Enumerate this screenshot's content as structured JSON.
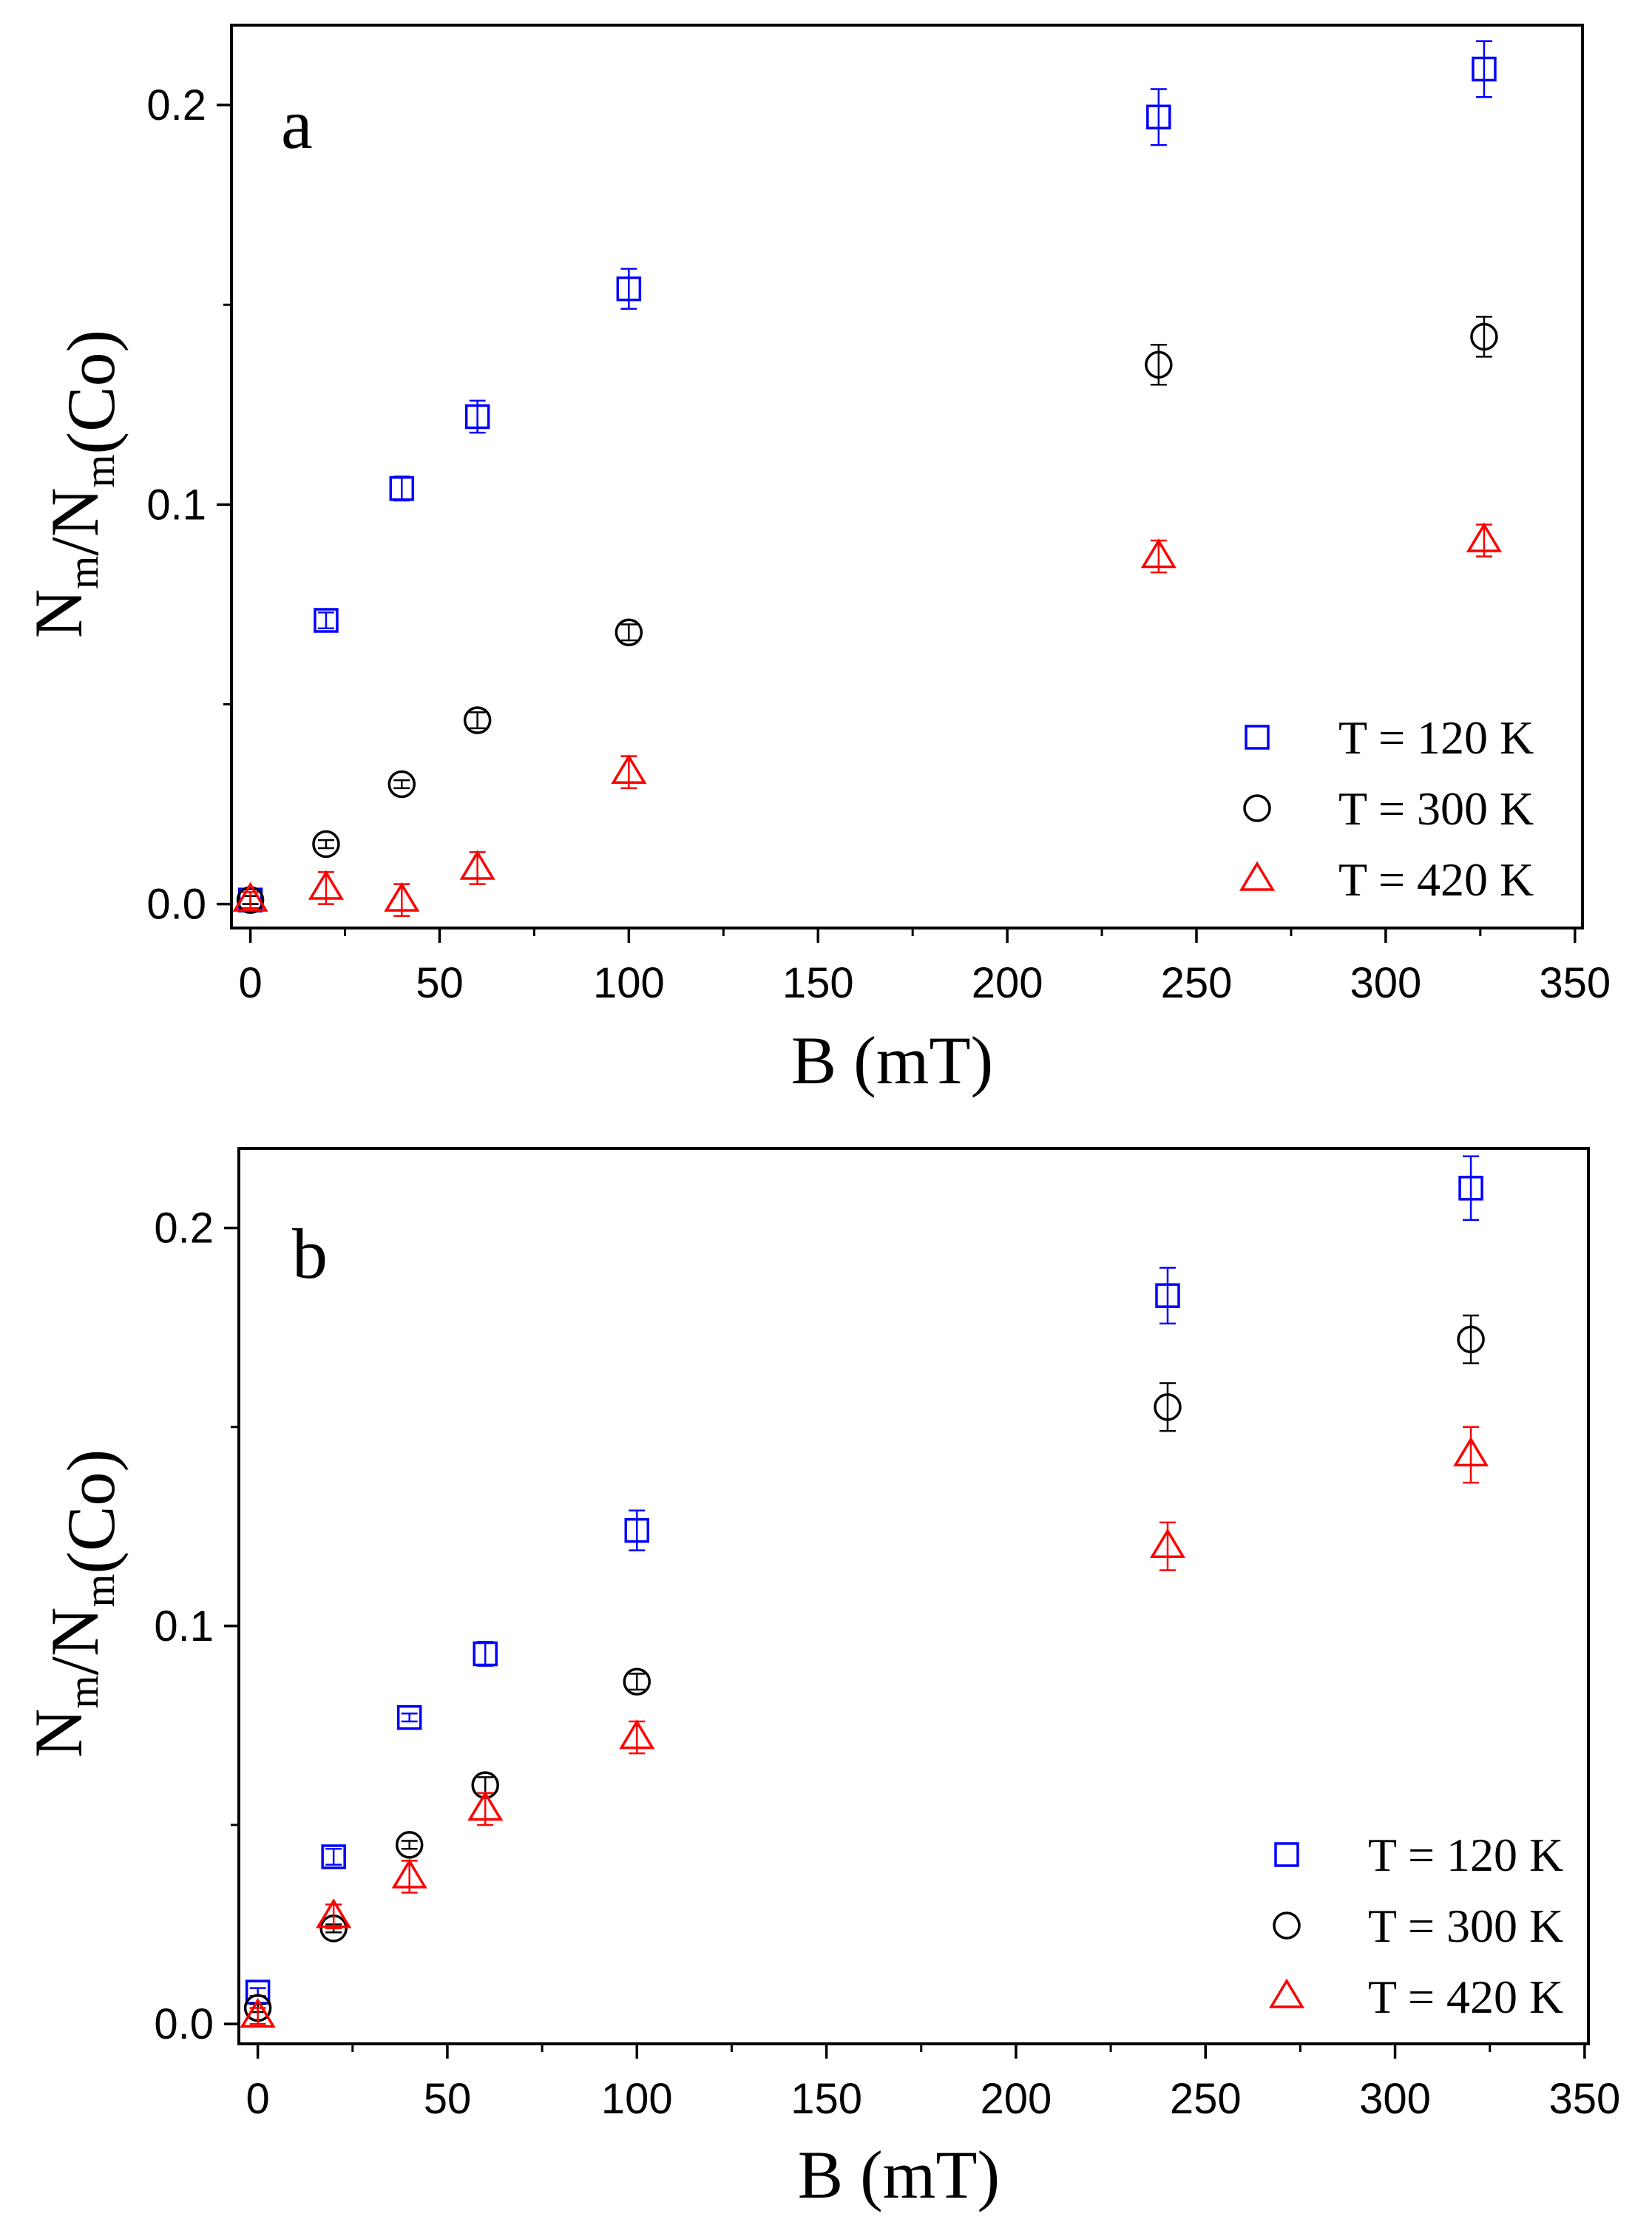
{
  "figure": {
    "colors": {
      "blue": "#0000ff",
      "black": "#000000",
      "red": "#ff0000"
    },
    "markers": {
      "T120": "square-marker",
      "T300": "circle-marker",
      "T420": "triangle-marker"
    }
  },
  "chart_data": [
    {
      "type": "scatter",
      "panel_label": "a",
      "xlabel": "B (mT)",
      "ylabel": {
        "N": "N",
        "sub": "m",
        "slash": "/",
        "N2": "N",
        "sub2": "m",
        "suffix": "(Co)"
      },
      "xlim": [
        -5,
        352
      ],
      "ylim": [
        -0.006,
        0.22
      ],
      "xticks": [
        0,
        50,
        100,
        150,
        200,
        250,
        300,
        350
      ],
      "xtick_labels": [
        "0",
        "50",
        "100",
        "150",
        "200",
        "250",
        "300",
        "350"
      ],
      "yticks": [
        0.0,
        0.1,
        0.2
      ],
      "ytick_labels": [
        "0.0",
        "0.1",
        "0.2"
      ],
      "legend_position": "lower-right",
      "series": [
        {
          "name": "T = 120 K",
          "marker": "square",
          "color": "#0000ff",
          "x": [
            0,
            20,
            40,
            60,
            100,
            240,
            326
          ],
          "y": [
            0.001,
            0.071,
            0.104,
            0.122,
            0.154,
            0.197,
            0.209
          ],
          "err": [
            0.001,
            0.002,
            0.003,
            0.004,
            0.005,
            0.007,
            0.007
          ]
        },
        {
          "name": "T = 300 K",
          "marker": "circle",
          "color": "#000000",
          "x": [
            0,
            20,
            40,
            60,
            100,
            240,
            326
          ],
          "y": [
            0.001,
            0.015,
            0.03,
            0.046,
            0.068,
            0.135,
            0.142
          ],
          "err": [
            0.001,
            0.001,
            0.001,
            0.002,
            0.002,
            0.005,
            0.005
          ]
        },
        {
          "name": "T = 420 K",
          "marker": "triangle",
          "color": "#ff0000",
          "x": [
            0,
            20,
            40,
            60,
            100,
            240,
            326
          ],
          "y": [
            0.001,
            0.004,
            0.001,
            0.009,
            0.033,
            0.087,
            0.091
          ],
          "err": [
            0.002,
            0.004,
            0.004,
            0.004,
            0.004,
            0.004,
            0.004
          ]
        }
      ]
    },
    {
      "type": "scatter",
      "panel_label": "b",
      "xlabel": "B (mT)",
      "ylabel": {
        "N": "N",
        "sub": "m",
        "slash": "/",
        "N2": "N",
        "sub2": "m",
        "suffix": "(Co)"
      },
      "xlim": [
        -5,
        351
      ],
      "ylim": [
        -0.005,
        0.22
      ],
      "xticks": [
        0,
        50,
        100,
        150,
        200,
        250,
        300,
        350
      ],
      "xtick_labels": [
        "0",
        "50",
        "100",
        "150",
        "200",
        "250",
        "300",
        "350"
      ],
      "yticks": [
        0.0,
        0.1,
        0.2
      ],
      "ytick_labels": [
        "0.0",
        "0.1",
        "0.2"
      ],
      "legend_position": "lower-right",
      "series": [
        {
          "name": "T = 120 K",
          "marker": "square",
          "color": "#0000ff",
          "x": [
            0,
            20,
            40,
            60,
            100,
            240,
            320
          ],
          "y": [
            0.008,
            0.042,
            0.077,
            0.093,
            0.124,
            0.183,
            0.21
          ],
          "err": [
            0.001,
            0.002,
            0.001,
            0.003,
            0.005,
            0.007,
            0.008
          ]
        },
        {
          "name": "T = 300 K",
          "marker": "circle",
          "color": "#000000",
          "x": [
            0,
            20,
            40,
            60,
            100,
            240,
            320
          ],
          "y": [
            0.004,
            0.024,
            0.045,
            0.06,
            0.086,
            0.155,
            0.172
          ],
          "err": [
            0.001,
            0.001,
            0.001,
            0.002,
            0.002,
            0.006,
            0.006
          ]
        },
        {
          "name": "T = 420 K",
          "marker": "triangle",
          "color": "#ff0000",
          "x": [
            0,
            20,
            40,
            60,
            100,
            240,
            320
          ],
          "y": [
            0.002,
            0.027,
            0.037,
            0.054,
            0.072,
            0.12,
            0.143
          ],
          "err": [
            0.002,
            0.003,
            0.004,
            0.004,
            0.004,
            0.006,
            0.007
          ]
        }
      ]
    }
  ]
}
